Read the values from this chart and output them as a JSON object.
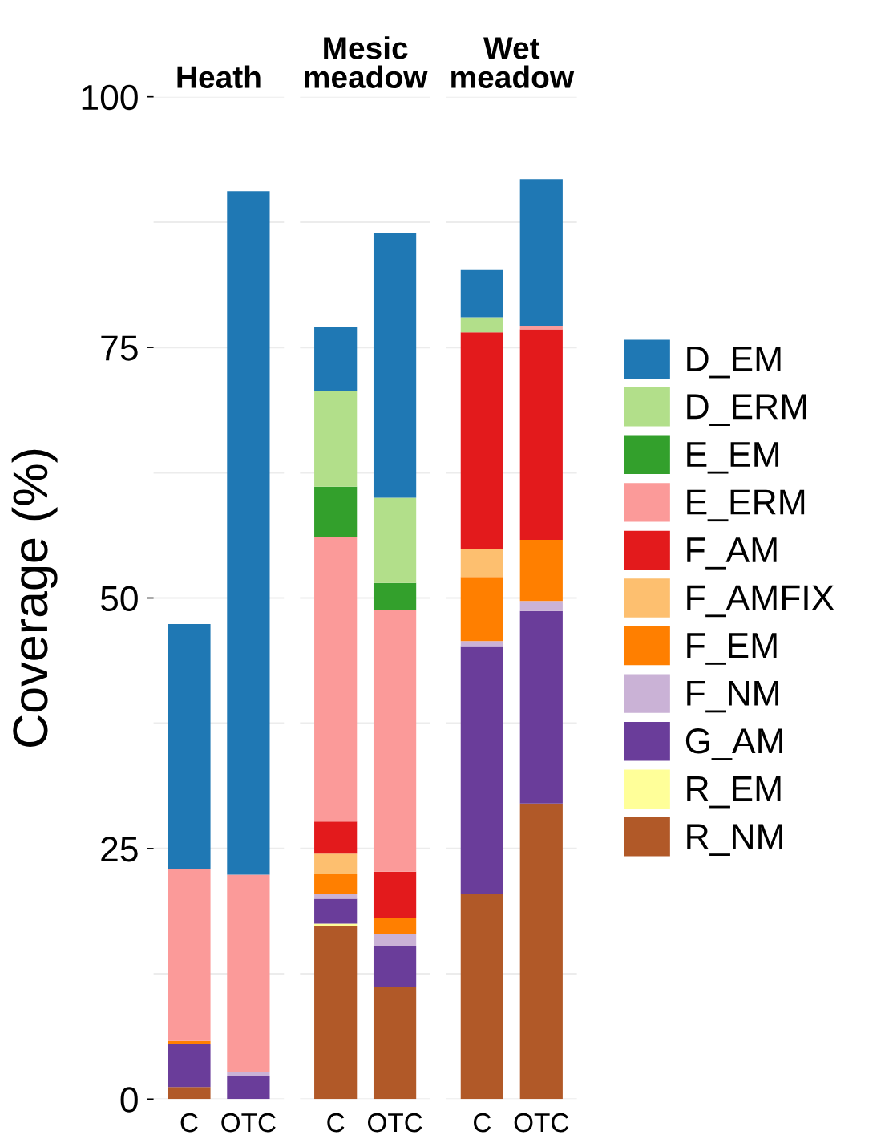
{
  "chart_data": [
    {
      "type": "bar",
      "title": "Heath",
      "ylabel": "Coverage (%)",
      "categories": [
        "C",
        "OTC"
      ],
      "stacked": true,
      "ylim": [
        0,
        100
      ],
      "yticks": [
        0,
        {
          "value": 12.5,
          "label": null
        },
        25,
        {
          "value": 37.5,
          "label": null
        },
        50,
        {
          "value": 62.5,
          "label": null
        },
        75,
        {
          "value": 87.5,
          "label": null
        },
        100
      ],
      "grid": "y",
      "legend": false,
      "series": [
        {
          "color": "#b15928",
          "values": [
            1.2,
            null
          ]
        },
        {
          "color": "#ffff99",
          "values": [
            null,
            null
          ]
        },
        {
          "color": "#6a3d9a",
          "values": [
            4.3,
            2.3
          ]
        },
        {
          "color": "#cab2d6",
          "values": [
            null,
            0.4
          ]
        },
        {
          "color": "#ff7f00",
          "values": [
            0.3,
            null
          ]
        },
        {
          "color": "#fdbf6f",
          "values": [
            null,
            null
          ]
        },
        {
          "color": "#e31a1c",
          "values": [
            null,
            null
          ]
        },
        {
          "color": "#fb9a99",
          "values": [
            17.2,
            19.7
          ]
        },
        {
          "color": "#33a02c",
          "values": [
            null,
            null
          ]
        },
        {
          "color": "#b2df8a",
          "values": [
            null,
            null
          ]
        },
        {
          "color": "#1f78b4",
          "values": [
            24.4,
            68.2
          ]
        }
      ]
    },
    {
      "type": "bar",
      "title": "Mesic\nmeadow",
      "categories": [
        "C",
        "OTC"
      ],
      "stacked": true,
      "ylim": [
        0,
        100
      ],
      "yticks": [
        0,
        {
          "value": 12.5,
          "label": null
        },
        25,
        {
          "value": 37.5,
          "label": null
        },
        50,
        {
          "value": 62.5,
          "label": null
        },
        75,
        {
          "value": 87.5,
          "label": null
        },
        100
      ],
      "grid": "y",
      "legend": false,
      "tick_labels": "x",
      "series": [
        {
          "color": "#b15928",
          "values": [
            17.3,
            11.2
          ]
        },
        {
          "color": "#ffff99",
          "values": [
            0.2,
            null
          ]
        },
        {
          "color": "#6a3d9a",
          "values": [
            2.5,
            4.1
          ]
        },
        {
          "color": "#cab2d6",
          "values": [
            0.5,
            1.2
          ]
        },
        {
          "color": "#ff7f00",
          "values": [
            2.0,
            1.6
          ]
        },
        {
          "color": "#fdbf6f",
          "values": [
            2.0,
            null
          ]
        },
        {
          "color": "#e31a1c",
          "values": [
            3.2,
            4.6
          ]
        },
        {
          "color": "#fb9a99",
          "values": [
            28.4,
            26.1
          ]
        },
        {
          "color": "#33a02c",
          "values": [
            5.0,
            2.7
          ]
        },
        {
          "color": "#b2df8a",
          "values": [
            9.5,
            8.5
          ]
        },
        {
          "color": "#1f78b4",
          "values": [
            6.4,
            26.4
          ]
        }
      ]
    },
    {
      "type": "bar",
      "title": "Wet\nmeadow",
      "categories": [
        "C",
        "OTC"
      ],
      "stacked": true,
      "ylim": [
        0,
        100
      ],
      "yticks": [
        0,
        {
          "value": 12.5,
          "label": null
        },
        25,
        {
          "value": 37.5,
          "label": null
        },
        50,
        {
          "value": 62.5,
          "label": null
        },
        75,
        {
          "value": 87.5,
          "label": null
        },
        100
      ],
      "grid": "y",
      "legend": "right",
      "tick_labels": "x",
      "series": [
        {
          "name": "R_NM",
          "color": "#b15928",
          "values": [
            20.5,
            29.5
          ]
        },
        {
          "name": "R_EM",
          "color": "#ffff99",
          "values": [
            null,
            null
          ]
        },
        {
          "name": "G_AM",
          "color": "#6a3d9a",
          "values": [
            24.7,
            19.2
          ]
        },
        {
          "name": "F_NM",
          "color": "#cab2d6",
          "values": [
            0.5,
            1.0
          ]
        },
        {
          "name": "F_EM",
          "color": "#ff7f00",
          "values": [
            6.4,
            6.1
          ]
        },
        {
          "name": "F_AMFIX",
          "color": "#fdbf6f",
          "values": [
            2.8,
            null
          ]
        },
        {
          "name": "F_AM",
          "color": "#e31a1c",
          "values": [
            21.6,
            21.0
          ]
        },
        {
          "name": "E_ERM",
          "color": "#fb9a99",
          "values": [
            null,
            0.3
          ]
        },
        {
          "name": "E_EM",
          "color": "#33a02c",
          "values": [
            null,
            null
          ]
        },
        {
          "name": "D_ERM",
          "color": "#b2df8a",
          "values": [
            1.5,
            null
          ]
        },
        {
          "name": "D_EM",
          "color": "#1f78b4",
          "values": [
            4.8,
            14.7
          ]
        }
      ]
    }
  ]
}
